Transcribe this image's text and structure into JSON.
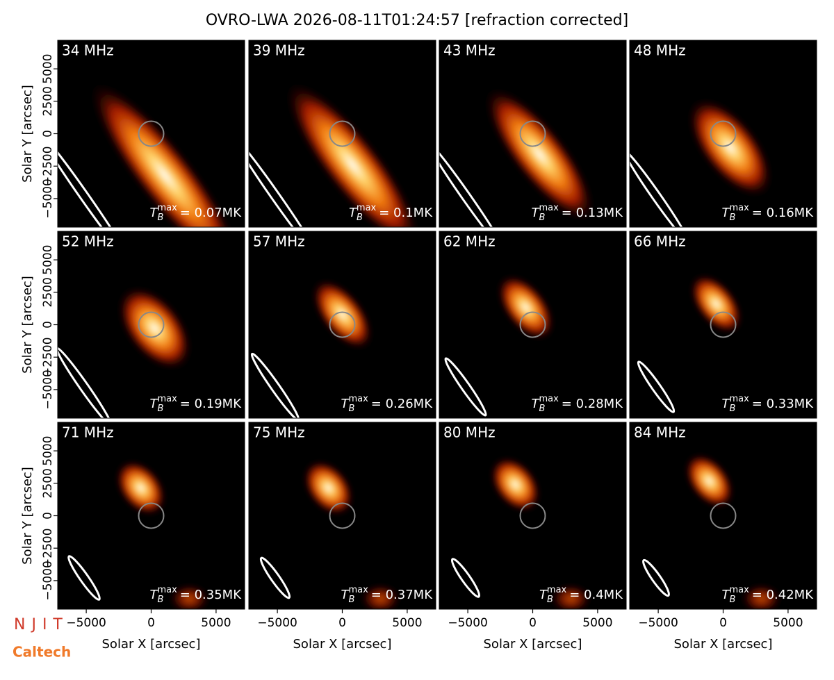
{
  "title": "OVRO-LWA 2026-08-11T01:24:57 [refraction corrected]",
  "x_label": "Solar X [arcsec]",
  "y_label": "Solar Y [arcsec]",
  "xlim": [
    -7200,
    7200
  ],
  "ylim": [
    -7200,
    7200
  ],
  "xticks": [
    {
      "value": -5000,
      "label": "−5000"
    },
    0,
    5000
  ],
  "yticks": [
    {
      "value": -5000,
      "label": "−5000"
    },
    {
      "value": -2500,
      "label": "−2500"
    },
    0,
    2500,
    5000
  ],
  "tb_symbol": "T",
  "tb_sub": "B",
  "tb_sup": "max",
  "panels": [
    {
      "label": "34 MHz",
      "tmax": "= 0.07MK"
    },
    {
      "label": "39 MHz",
      "tmax": "= 0.1MK"
    },
    {
      "label": "43 MHz",
      "tmax": "= 0.13MK"
    },
    {
      "label": "48 MHz",
      "tmax": "= 0.16MK"
    },
    {
      "label": "52 MHz",
      "tmax": "= 0.19MK"
    },
    {
      "label": "57 MHz",
      "tmax": "= 0.26MK"
    },
    {
      "label": "62 MHz",
      "tmax": "= 0.28MK"
    },
    {
      "label": "66 MHz",
      "tmax": "= 0.33MK"
    },
    {
      "label": "71 MHz",
      "tmax": "= 0.35MK"
    },
    {
      "label": "75 MHz",
      "tmax": "= 0.37MK"
    },
    {
      "label": "80 MHz",
      "tmax": "= 0.4MK"
    },
    {
      "label": "84 MHz",
      "tmax": "= 0.42MK"
    }
  ],
  "logos": {
    "njit": "NJIT",
    "caltech": "Caltech"
  }
}
